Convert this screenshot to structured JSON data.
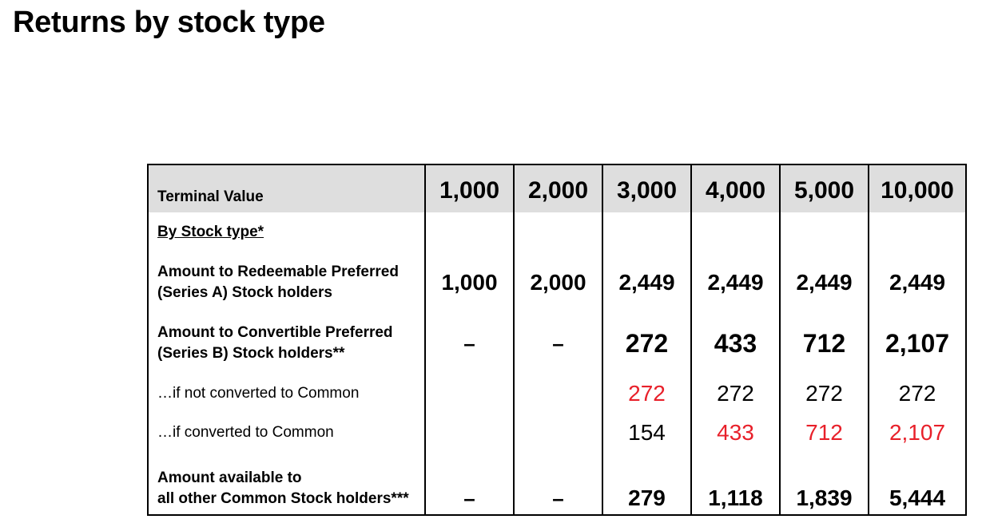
{
  "title": "Returns by stock type",
  "colors": {
    "header_bg": "#dedede",
    "highlight_red": "#e8202a"
  },
  "table": {
    "header": {
      "label": "Terminal Value",
      "values": [
        "1,000",
        "2,000",
        "3,000",
        "4,000",
        "5,000",
        "10,000"
      ]
    },
    "subtitle": "By Stock type*",
    "rows": [
      {
        "label_line1": "Amount to Redeemable Preferred",
        "label_line2": "(Series A) Stock holders",
        "values": [
          "1,000",
          "2,000",
          "2,449",
          "2,449",
          "2,449",
          "2,449"
        ]
      },
      {
        "label_line1": "Amount to Convertible Preferred",
        "label_line2": "(Series B) Stock holders**",
        "values": [
          "–",
          "–",
          "272",
          "433",
          "712",
          "2,107"
        ]
      },
      {
        "label": "…if not converted to Common",
        "values": [
          "",
          "",
          "272",
          "272",
          "272",
          "272"
        ],
        "red": [
          false,
          false,
          true,
          false,
          false,
          false
        ]
      },
      {
        "label": "…if converted to Common",
        "values": [
          "",
          "",
          "154",
          "433",
          "712",
          "2,107"
        ],
        "red": [
          false,
          false,
          false,
          true,
          true,
          true
        ]
      },
      {
        "label_line1": "Amount available to",
        "label_line2": "all other Common Stock holders***",
        "values": [
          "–",
          "–",
          "279",
          "1,118",
          "1,839",
          "5,444"
        ]
      }
    ]
  }
}
